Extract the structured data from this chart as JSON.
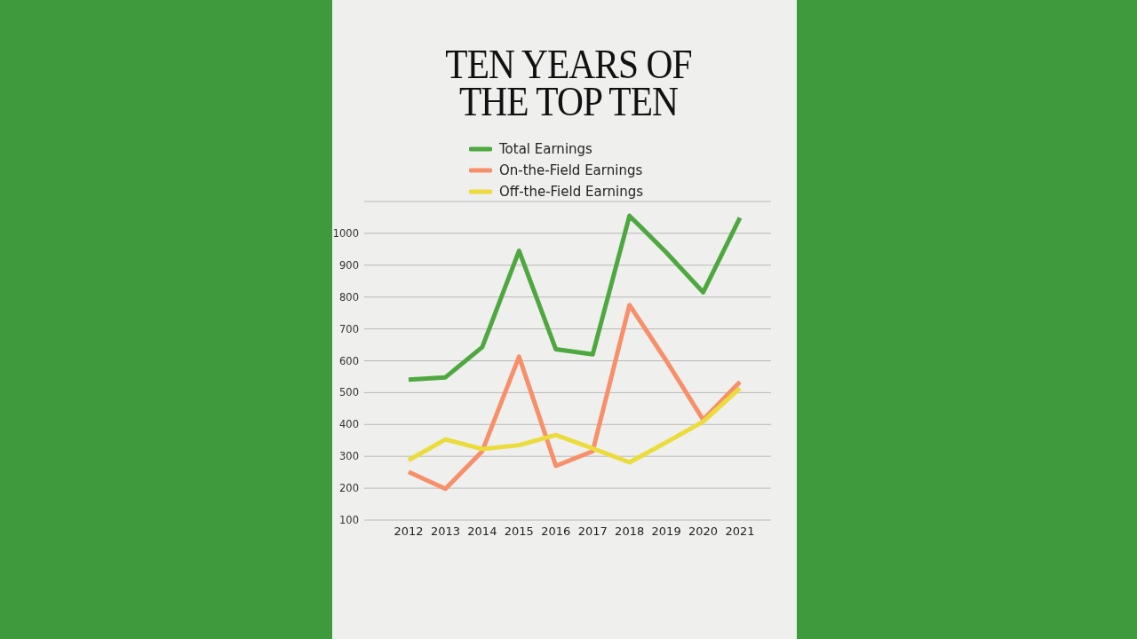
{
  "chart_data": {
    "type": "line",
    "title": "TEN YEARS OF\nTHE TOP TEN",
    "categories": [
      "2012",
      "2013",
      "2014",
      "2015",
      "2016",
      "2017",
      "2018",
      "2019",
      "2020",
      "2021"
    ],
    "series": [
      {
        "name": "Total Earnings",
        "color": "#4ea83f",
        "values": [
          541,
          548,
          643,
          945,
          636,
          620,
          1055,
          940,
          815,
          1049
        ]
      },
      {
        "name": "On-the-Field Earnings",
        "color": "#f7906a",
        "values": [
          251,
          198,
          316,
          613,
          270,
          316,
          775,
          600,
          415,
          534
        ]
      },
      {
        "name": "Off-the-Field Earnings",
        "color": "#ebdc3c",
        "values": [
          288,
          353,
          323,
          335,
          367,
          325,
          281,
          344,
          409,
          514
        ]
      }
    ],
    "ylim": [
      100,
      1100
    ],
    "yticks": [
      100,
      200,
      300,
      400,
      500,
      600,
      700,
      800,
      900,
      1000
    ],
    "grid": "y",
    "legend": "top left",
    "marker": "none",
    "line_style": "solid"
  }
}
